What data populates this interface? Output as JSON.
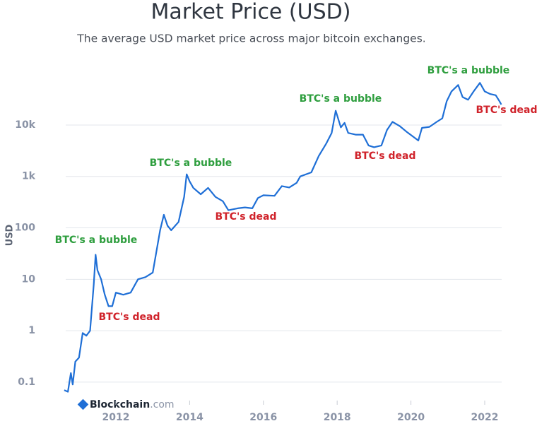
{
  "chart_data": {
    "type": "line",
    "title": "Market Price (USD)",
    "subtitle": "The average USD market price across major bitcoin exchanges.",
    "y_label": "USD",
    "watermark": {
      "name": "Blockchain",
      "suffix": ".com"
    },
    "log_y": true,
    "grid": true,
    "color": "#1f6fd6",
    "xlim": [
      2010.64,
      2022.46
    ],
    "xticks": [
      2012,
      2014,
      2016,
      2018,
      2020,
      2022
    ],
    "ylim": [
      0.064,
      71000
    ],
    "yticks": [
      0.1,
      1,
      10,
      100,
      {
        "value": 1000,
        "label": "1k"
      },
      {
        "value": 10000,
        "label": "10k"
      }
    ],
    "x": [
      2010.6,
      2010.7,
      2010.78,
      2010.83,
      2010.9,
      2011.0,
      2011.1,
      2011.2,
      2011.3,
      2011.4,
      2011.45,
      2011.5,
      2011.6,
      2011.7,
      2011.8,
      2011.9,
      2012.0,
      2012.2,
      2012.4,
      2012.6,
      2012.8,
      2013.0,
      2013.2,
      2013.3,
      2013.4,
      2013.5,
      2013.7,
      2013.85,
      2013.92,
      2014.0,
      2014.1,
      2014.3,
      2014.5,
      2014.7,
      2014.9,
      2015.05,
      2015.3,
      2015.5,
      2015.7,
      2015.85,
      2016.0,
      2016.3,
      2016.5,
      2016.7,
      2016.9,
      2017.0,
      2017.3,
      2017.5,
      2017.7,
      2017.85,
      2017.96,
      2018.1,
      2018.2,
      2018.3,
      2018.5,
      2018.7,
      2018.85,
      2019.0,
      2019.2,
      2019.35,
      2019.5,
      2019.7,
      2019.9,
      2020.2,
      2020.3,
      2020.5,
      2020.7,
      2020.85,
      2020.97,
      2021.1,
      2021.28,
      2021.4,
      2021.55,
      2021.7,
      2021.87,
      2022.0,
      2022.15,
      2022.3,
      2022.4,
      2022.45
    ],
    "values": [
      0.07,
      0.065,
      0.15,
      0.09,
      0.25,
      0.3,
      0.9,
      0.8,
      1.0,
      8,
      30,
      15,
      10,
      5,
      3,
      3,
      5.5,
      5,
      5.5,
      10,
      11,
      13.5,
      90,
      180,
      110,
      90,
      130,
      400,
      1100,
      800,
      600,
      450,
      600,
      400,
      330,
      220,
      240,
      250,
      240,
      380,
      430,
      420,
      650,
      610,
      750,
      1000,
      1200,
      2500,
      4300,
      7000,
      19000,
      9000,
      11000,
      7000,
      6500,
      6500,
      4000,
      3700,
      4000,
      8000,
      11500,
      9500,
      7200,
      5000,
      8800,
      9200,
      11500,
      13500,
      29000,
      45000,
      60000,
      35000,
      31000,
      45000,
      66000,
      45000,
      40000,
      38000,
      29000,
      25000
    ],
    "annotations": [
      {
        "text": "BTC's a bubble",
        "color": "#2e9e3e"
      },
      {
        "text": "BTC's dead",
        "color": "#d0232b"
      },
      {
        "text": "BTC's a bubble",
        "color": "#2e9e3e"
      },
      {
        "text": "BTC's dead",
        "color": "#d0232b"
      },
      {
        "text": "BTC's a bubble",
        "color": "#2e9e3e"
      },
      {
        "text": "BTC's dead",
        "color": "#d0232b"
      },
      {
        "text": "BTC's a bubble",
        "color": "#2e9e3e"
      },
      {
        "text": "BTC's dead",
        "color": "#d0232b"
      }
    ]
  }
}
